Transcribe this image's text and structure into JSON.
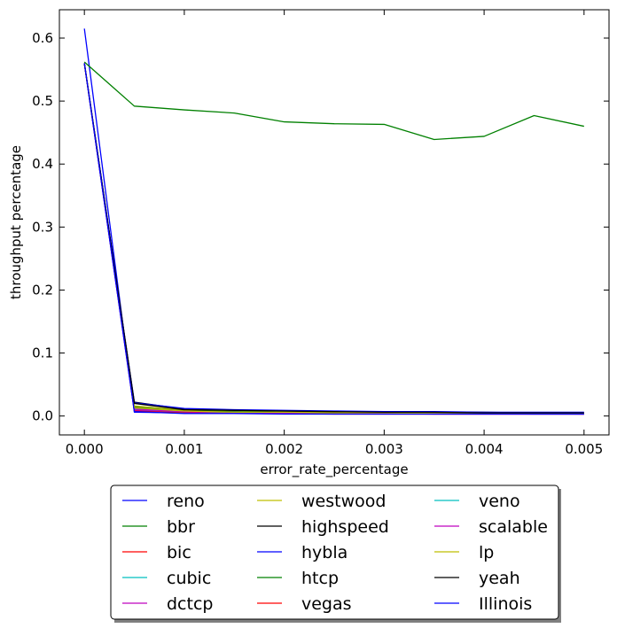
{
  "chart_data": {
    "type": "line",
    "xlabel": "error_rate_percentage",
    "ylabel": "throughput percentage",
    "xlim": [
      -0.00025,
      0.00525
    ],
    "ylim": [
      -0.03,
      0.645
    ],
    "x_ticks": [
      0.0,
      0.001,
      0.002,
      0.003,
      0.004,
      0.005
    ],
    "x_tick_labels": [
      "0.000",
      "0.001",
      "0.002",
      "0.003",
      "0.004",
      "0.005"
    ],
    "y_ticks": [
      0.0,
      0.1,
      0.2,
      0.3,
      0.4,
      0.5,
      0.6
    ],
    "y_tick_labels": [
      "0.0",
      "0.1",
      "0.2",
      "0.3",
      "0.4",
      "0.5",
      "0.6"
    ],
    "grid": false,
    "legend_position": "bottom-center",
    "x": [
      0.0,
      0.0005,
      0.001,
      0.0015,
      0.002,
      0.0025,
      0.003,
      0.0035,
      0.004,
      0.0045,
      0.005
    ],
    "series": [
      {
        "name": "reno",
        "color": "#0000ff",
        "values": [
          0.615,
          0.006,
          0.005,
          0.005,
          0.004,
          0.004,
          0.004,
          0.004,
          0.004,
          0.004,
          0.004
        ]
      },
      {
        "name": "bbr",
        "color": "#008000",
        "values": [
          0.562,
          0.492,
          0.486,
          0.481,
          0.467,
          0.464,
          0.463,
          0.439,
          0.444,
          0.477,
          0.46
        ]
      },
      {
        "name": "bic",
        "color": "#ff0000",
        "values": [
          0.56,
          0.015,
          0.008,
          0.007,
          0.006,
          0.005,
          0.005,
          0.005,
          0.004,
          0.004,
          0.004
        ]
      },
      {
        "name": "cubic",
        "color": "#00bfbf",
        "values": [
          0.56,
          0.01,
          0.006,
          0.005,
          0.005,
          0.004,
          0.004,
          0.004,
          0.004,
          0.003,
          0.003
        ]
      },
      {
        "name": "dctcp",
        "color": "#bf00bf",
        "values": [
          0.56,
          0.009,
          0.005,
          0.005,
          0.004,
          0.004,
          0.004,
          0.003,
          0.003,
          0.003,
          0.003
        ]
      },
      {
        "name": "westwood",
        "color": "#bfbf00",
        "values": [
          0.56,
          0.016,
          0.009,
          0.008,
          0.007,
          0.006,
          0.006,
          0.005,
          0.005,
          0.005,
          0.004
        ]
      },
      {
        "name": "highspeed",
        "color": "#000000",
        "values": [
          0.56,
          0.022,
          0.011,
          0.009,
          0.008,
          0.007,
          0.007,
          0.006,
          0.006,
          0.005,
          0.005
        ]
      },
      {
        "name": "hybla",
        "color": "#0000ff",
        "values": [
          0.56,
          0.021,
          0.012,
          0.01,
          0.009,
          0.008,
          0.007,
          0.007,
          0.006,
          0.006,
          0.006
        ]
      },
      {
        "name": "htcp",
        "color": "#008000",
        "values": [
          0.56,
          0.014,
          0.008,
          0.007,
          0.006,
          0.005,
          0.005,
          0.005,
          0.004,
          0.004,
          0.004
        ]
      },
      {
        "name": "vegas",
        "color": "#ff0000",
        "values": [
          0.56,
          0.008,
          0.005,
          0.004,
          0.004,
          0.003,
          0.003,
          0.003,
          0.003,
          0.003,
          0.003
        ]
      },
      {
        "name": "veno",
        "color": "#00bfbf",
        "values": [
          0.56,
          0.012,
          0.007,
          0.006,
          0.005,
          0.005,
          0.004,
          0.004,
          0.004,
          0.004,
          0.004
        ]
      },
      {
        "name": "scalable",
        "color": "#bf00bf",
        "values": [
          0.56,
          0.011,
          0.007,
          0.006,
          0.005,
          0.005,
          0.004,
          0.004,
          0.004,
          0.004,
          0.003
        ]
      },
      {
        "name": "lp",
        "color": "#bfbf00",
        "values": [
          0.56,
          0.013,
          0.008,
          0.006,
          0.006,
          0.005,
          0.005,
          0.004,
          0.004,
          0.004,
          0.004
        ]
      },
      {
        "name": "yeah",
        "color": "#000000",
        "values": [
          0.56,
          0.02,
          0.01,
          0.009,
          0.008,
          0.007,
          0.006,
          0.006,
          0.005,
          0.005,
          0.005
        ]
      },
      {
        "name": "Illinois",
        "color": "#0000ff",
        "values": [
          0.56,
          0.007,
          0.004,
          0.004,
          0.003,
          0.003,
          0.003,
          0.003,
          0.003,
          0.003,
          0.003
        ]
      }
    ]
  }
}
